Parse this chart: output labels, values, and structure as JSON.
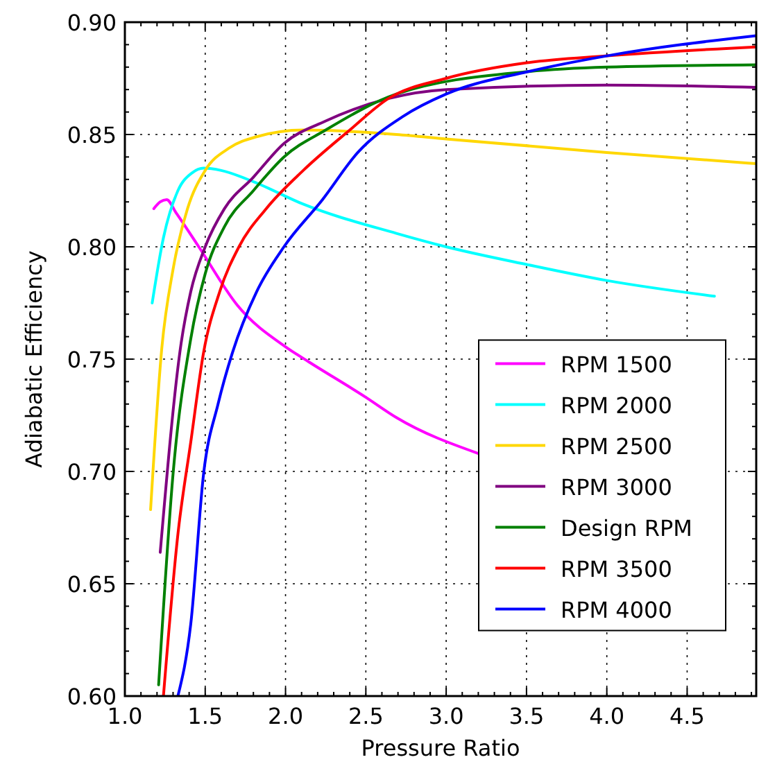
{
  "chart_data": {
    "type": "line",
    "xlabel": "Pressure Ratio",
    "ylabel": "Adiabatic Efficiency",
    "xlim": [
      1.0,
      4.93
    ],
    "ylim": [
      0.6,
      0.9
    ],
    "xticks": [
      {
        "value": 1.0,
        "label": "1.0"
      },
      {
        "value": 1.5,
        "label": "1.5"
      },
      {
        "value": 2.0,
        "label": "2.0"
      },
      {
        "value": 2.5,
        "label": "2.5"
      },
      {
        "value": 3.0,
        "label": "3.0"
      },
      {
        "value": 3.5,
        "label": "3.5"
      },
      {
        "value": 4.0,
        "label": "4.0"
      },
      {
        "value": 4.5,
        "label": "4.5"
      },
      {
        "value": 1.1,
        "label": null
      },
      {
        "value": 1.2,
        "label": null
      },
      {
        "value": 1.3,
        "label": null
      },
      {
        "value": 1.4,
        "label": null
      },
      {
        "value": 1.6,
        "label": null
      },
      {
        "value": 1.7,
        "label": null
      },
      {
        "value": 1.8,
        "label": null
      },
      {
        "value": 1.9,
        "label": null
      },
      {
        "value": 2.1,
        "label": null
      },
      {
        "value": 2.2,
        "label": null
      },
      {
        "value": 2.3,
        "label": null
      },
      {
        "value": 2.4,
        "label": null
      },
      {
        "value": 2.6,
        "label": null
      },
      {
        "value": 2.7,
        "label": null
      },
      {
        "value": 2.8,
        "label": null
      },
      {
        "value": 2.9,
        "label": null
      },
      {
        "value": 3.1,
        "label": null
      },
      {
        "value": 3.2,
        "label": null
      },
      {
        "value": 3.3,
        "label": null
      },
      {
        "value": 3.4,
        "label": null
      },
      {
        "value": 3.6,
        "label": null
      },
      {
        "value": 3.7,
        "label": null
      },
      {
        "value": 3.8,
        "label": null
      },
      {
        "value": 3.9,
        "label": null
      },
      {
        "value": 4.1,
        "label": null
      },
      {
        "value": 4.2,
        "label": null
      },
      {
        "value": 4.3,
        "label": null
      },
      {
        "value": 4.4,
        "label": null
      },
      {
        "value": 4.6,
        "label": null
      },
      {
        "value": 4.7,
        "label": null
      },
      {
        "value": 4.8,
        "label": null
      },
      {
        "value": 4.9,
        "label": null
      }
    ],
    "yticks": [
      {
        "value": 0.6,
        "label": "0.60"
      },
      {
        "value": 0.65,
        "label": "0.65"
      },
      {
        "value": 0.7,
        "label": "0.70"
      },
      {
        "value": 0.75,
        "label": "0.75"
      },
      {
        "value": 0.8,
        "label": "0.80"
      },
      {
        "value": 0.85,
        "label": "0.85"
      },
      {
        "value": 0.9,
        "label": "0.90"
      },
      {
        "value": 0.61,
        "label": null
      },
      {
        "value": 0.62,
        "label": null
      },
      {
        "value": 0.63,
        "label": null
      },
      {
        "value": 0.64,
        "label": null
      },
      {
        "value": 0.66,
        "label": null
      },
      {
        "value": 0.67,
        "label": null
      },
      {
        "value": 0.68,
        "label": null
      },
      {
        "value": 0.69,
        "label": null
      },
      {
        "value": 0.71,
        "label": null
      },
      {
        "value": 0.72,
        "label": null
      },
      {
        "value": 0.73,
        "label": null
      },
      {
        "value": 0.74,
        "label": null
      },
      {
        "value": 0.76,
        "label": null
      },
      {
        "value": 0.77,
        "label": null
      },
      {
        "value": 0.78,
        "label": null
      },
      {
        "value": 0.79,
        "label": null
      },
      {
        "value": 0.81,
        "label": null
      },
      {
        "value": 0.82,
        "label": null
      },
      {
        "value": 0.83,
        "label": null
      },
      {
        "value": 0.84,
        "label": null
      },
      {
        "value": 0.86,
        "label": null
      },
      {
        "value": 0.87,
        "label": null
      },
      {
        "value": 0.88,
        "label": null
      },
      {
        "value": 0.89,
        "label": null
      }
    ],
    "grid": true,
    "legend": "right",
    "marker": "none",
    "line_style": "solid",
    "series": [
      {
        "name": "RPM 1500",
        "color": "#ff00ff",
        "x": [
          1.18,
          1.22,
          1.26,
          1.32,
          1.46,
          1.7,
          2.01,
          2.14,
          2.5,
          2.69,
          3.2
        ],
        "values": [
          0.817,
          0.82,
          0.821,
          0.815,
          0.8,
          0.774,
          0.755,
          0.749,
          0.733,
          0.724,
          0.708
        ]
      },
      {
        "name": "RPM 2000",
        "color": "#00ffff",
        "x": [
          1.17,
          1.24,
          1.33,
          1.42,
          1.49,
          1.6,
          1.8,
          2.11,
          2.69,
          3.0,
          3.51,
          4.0,
          4.67
        ],
        "values": [
          0.775,
          0.804,
          0.825,
          0.833,
          0.835,
          0.834,
          0.829,
          0.819,
          0.806,
          0.8,
          0.792,
          0.785,
          0.778
        ]
      },
      {
        "name": "RPM 2500",
        "color": "#ffd700",
        "x": [
          1.16,
          1.23,
          1.3,
          1.39,
          1.5,
          1.65,
          1.82,
          2.11,
          2.69,
          3.0,
          4.0,
          4.93
        ],
        "values": [
          0.683,
          0.755,
          0.79,
          0.817,
          0.834,
          0.844,
          0.849,
          0.852,
          0.85,
          0.848,
          0.842,
          0.837
        ]
      },
      {
        "name": "RPM 3000",
        "color": "#800080",
        "x": [
          1.22,
          1.35,
          1.41,
          1.5,
          1.62,
          1.8,
          1.99,
          2.25,
          2.64,
          3.0,
          4.0,
          4.93
        ],
        "values": [
          0.664,
          0.757,
          0.78,
          0.8,
          0.817,
          0.831,
          0.846,
          0.856,
          0.866,
          0.87,
          0.872,
          0.871
        ]
      },
      {
        "name": "Design RPM",
        "color": "#008000",
        "x": [
          1.21,
          1.3,
          1.41,
          1.5,
          1.62,
          1.8,
          1.99,
          2.25,
          2.69,
          3.51,
          4.0,
          4.93
        ],
        "values": [
          0.605,
          0.699,
          0.759,
          0.788,
          0.809,
          0.825,
          0.84,
          0.852,
          0.868,
          0.878,
          0.88,
          0.881
        ]
      },
      {
        "name": "RPM 3500",
        "color": "#ff0000",
        "x": [
          1.24,
          1.33,
          1.41,
          1.49,
          1.59,
          1.71,
          1.88,
          2.11,
          2.4,
          2.64,
          3.0,
          3.51,
          4.0,
          4.93
        ],
        "values": [
          0.6,
          0.672,
          0.713,
          0.753,
          0.78,
          0.8,
          0.817,
          0.834,
          0.852,
          0.866,
          0.875,
          0.882,
          0.885,
          0.889
        ]
      },
      {
        "name": "RPM 4000",
        "color": "#0000ff",
        "x": [
          1.33,
          1.41,
          1.49,
          1.58,
          1.67,
          1.82,
          1.99,
          2.23,
          2.45,
          2.73,
          3.0,
          3.51,
          4.0,
          4.93
        ],
        "values": [
          0.6,
          0.632,
          0.699,
          0.73,
          0.753,
          0.78,
          0.8,
          0.821,
          0.842,
          0.858,
          0.868,
          0.878,
          0.885,
          0.894
        ]
      }
    ]
  }
}
